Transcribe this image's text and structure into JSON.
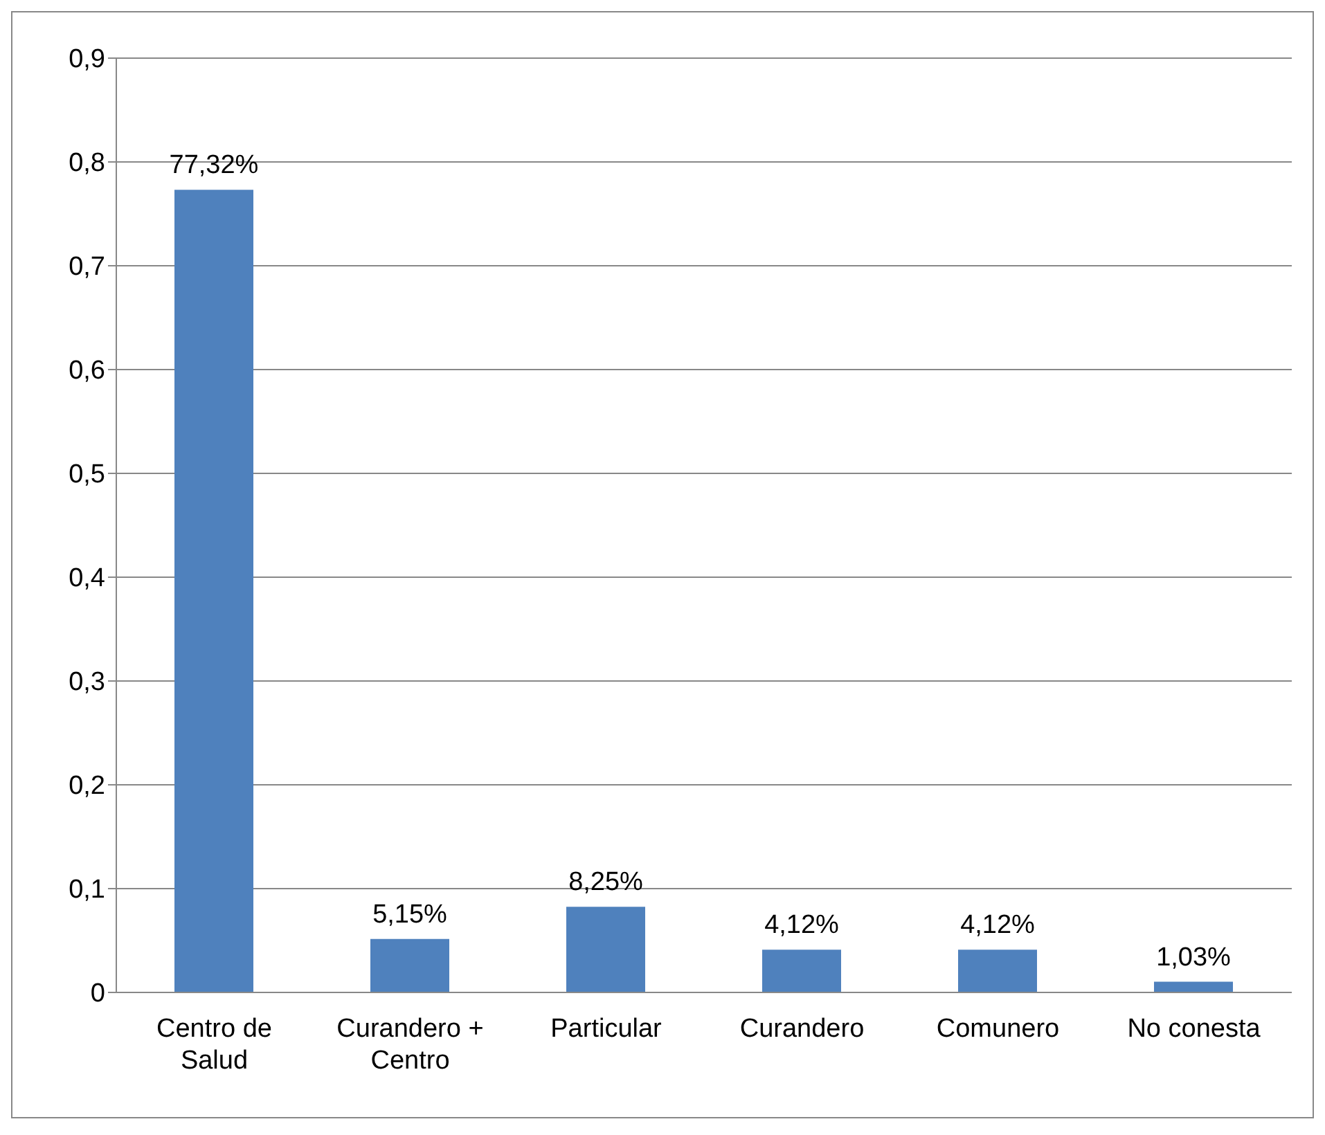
{
  "chart_data": {
    "type": "bar",
    "categories": [
      "Centro de Salud",
      "Curandero + Centro",
      "Particular",
      "Curandero",
      "Comunero",
      "No conesta"
    ],
    "values": [
      0.7732,
      0.0515,
      0.0825,
      0.0412,
      0.0412,
      0.0103
    ],
    "value_labels": [
      "77,32%",
      "5,15%",
      "8,25%",
      "4,12%",
      "4,12%",
      "1,03%"
    ],
    "color": "#4f81bd",
    "ylim": [
      0,
      0.9
    ],
    "yticks": [
      {
        "value": 0,
        "label": "0"
      },
      {
        "value": 0.1,
        "label": "0,1"
      },
      {
        "value": 0.2,
        "label": "0,2"
      },
      {
        "value": 0.3,
        "label": "0,3"
      },
      {
        "value": 0.4,
        "label": "0,4"
      },
      {
        "value": 0.5,
        "label": "0,5"
      },
      {
        "value": 0.6,
        "label": "0,6"
      },
      {
        "value": 0.7,
        "label": "0,7"
      },
      {
        "value": 0.8,
        "label": "0,8"
      },
      {
        "value": 0.9,
        "label": "0,9"
      }
    ],
    "grid": "y",
    "legend": false
  }
}
